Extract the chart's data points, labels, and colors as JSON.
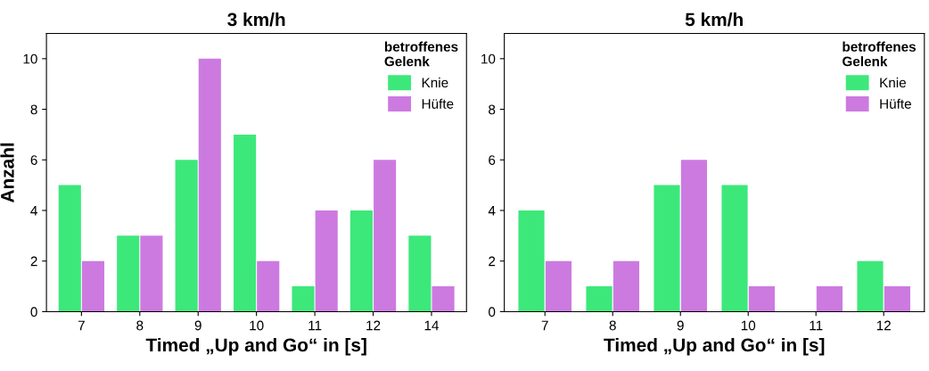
{
  "chart_data": [
    {
      "type": "bar",
      "title": "3 km/h",
      "xlabel": "Timed „Up and Go“ in [s]",
      "ylabel": "Anzahl",
      "legend_title": "betroffenes\nGelenk",
      "legend": "top right",
      "grid": false,
      "categories": [
        "7",
        "8",
        "9",
        "10",
        "11",
        "12",
        "14"
      ],
      "ylim": [
        0,
        11
      ],
      "yticks": [
        0,
        2,
        4,
        6,
        8,
        10
      ],
      "series": [
        {
          "name": "Knie",
          "color": "#3de87a",
          "values": [
            5,
            3,
            6,
            7,
            1,
            4,
            3
          ]
        },
        {
          "name": "Hüfte",
          "color": "#cc7ae0",
          "values": [
            2,
            3,
            10,
            2,
            4,
            6,
            1
          ]
        }
      ]
    },
    {
      "type": "bar",
      "title": "5 km/h",
      "xlabel": "Timed „Up and Go“ in [s]",
      "legend_title": "betroffenes\nGelenk",
      "legend": "top right",
      "grid": false,
      "categories": [
        "7",
        "8",
        "9",
        "10",
        "11",
        "12"
      ],
      "ylim": [
        0,
        11
      ],
      "yticks": [
        0,
        2,
        4,
        6,
        8,
        10
      ],
      "series": [
        {
          "name": "Knie",
          "color": "#3de87a",
          "values": [
            4,
            1,
            5,
            5,
            0,
            2
          ]
        },
        {
          "name": "Hüfte",
          "color": "#cc7ae0",
          "values": [
            2,
            2,
            6,
            1,
            1,
            1
          ]
        }
      ]
    }
  ]
}
